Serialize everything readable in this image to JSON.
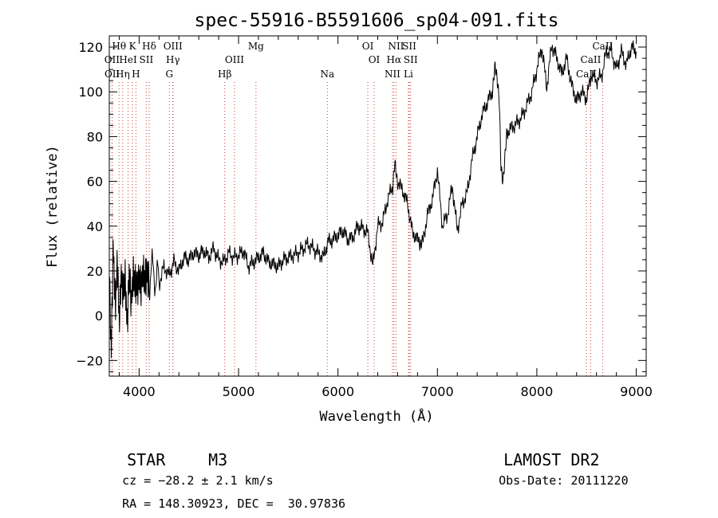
{
  "chart_data": {
    "type": "line",
    "title": "spec-55916-B5591606_sp04-091.fits",
    "xlabel": "Wavelength (Å)",
    "ylabel": "Flux (relative)",
    "xlim": [
      3700,
      9100
    ],
    "ylim": [
      -27,
      125
    ],
    "x_ticks": [
      4000,
      5000,
      6000,
      7000,
      8000,
      9000
    ],
    "y_ticks": [
      -20,
      0,
      20,
      40,
      60,
      80,
      100,
      120
    ],
    "grid": false,
    "series": [
      {
        "x": [
          3700,
          3720,
          3740,
          3760,
          3780,
          3800,
          3820,
          3840,
          3860,
          3880,
          3900,
          3920,
          3940,
          3960,
          3980,
          4000,
          4020,
          4040,
          4060,
          4080,
          4100,
          4150,
          4200,
          4250,
          4300,
          4350,
          4400,
          4450,
          4500,
          4550,
          4600,
          4650,
          4700,
          4750,
          4800,
          4850,
          4900,
          4950,
          5000,
          5050,
          5100,
          5150,
          5200,
          5250,
          5300,
          5350,
          5400,
          5450,
          5500,
          5550,
          5600,
          5650,
          5700,
          5750,
          5800,
          5850,
          5900,
          5950,
          6000,
          6050,
          6100,
          6150,
          6200,
          6250,
          6300,
          6350,
          6400,
          6450,
          6500,
          6550,
          6570,
          6600,
          6650,
          6700,
          6750,
          6800,
          6830,
          6850,
          6900,
          6950,
          7000,
          7050,
          7100,
          7150,
          7200,
          7250,
          7300,
          7350,
          7400,
          7450,
          7500,
          7550,
          7580,
          7600,
          7620,
          7640,
          7660,
          7680,
          7700,
          7750,
          7800,
          7850,
          7900,
          7950,
          8000,
          8050,
          8100,
          8150,
          8200,
          8250,
          8300,
          8350,
          8400,
          8450,
          8500,
          8550,
          8600,
          8650,
          8700,
          8750,
          8800,
          8850,
          8900,
          8950,
          9000
        ],
        "y": [
          20,
          -15,
          30,
          5,
          25,
          -5,
          20,
          10,
          15,
          -2,
          18,
          5,
          20,
          12,
          14,
          18,
          10,
          22,
          15,
          18,
          17,
          20,
          14,
          22,
          18,
          24,
          20,
          26,
          25,
          28,
          27,
          29,
          26,
          30,
          25,
          24,
          28,
          26,
          27,
          29,
          22,
          24,
          26,
          28,
          24,
          23,
          22,
          25,
          26,
          27,
          28,
          30,
          32,
          30,
          28,
          26,
          33,
          34,
          36,
          38,
          34,
          35,
          40,
          39,
          37,
          22,
          40,
          42,
          52,
          58,
          67,
          60,
          56,
          50,
          37,
          34,
          33,
          32,
          45,
          52,
          65,
          40,
          45,
          58,
          38,
          50,
          55,
          70,
          80,
          90,
          95,
          100,
          110,
          108,
          98,
          65,
          62,
          70,
          82,
          84,
          86,
          89,
          94,
          100,
          110,
          120,
          102,
          121,
          115,
          108,
          115,
          103,
          96,
          100,
          97,
          108,
          105,
          107,
          118,
          118,
          110,
          118,
          112,
          120,
          118
        ]
      }
    ],
    "line_markers": [
      {
        "label": "Hθ",
        "x": 3798,
        "row": 0
      },
      {
        "label": "K",
        "x": 3934,
        "row": 0
      },
      {
        "label": "Hδ",
        "x": 4101,
        "row": 0
      },
      {
        "label": "OIII",
        "x": 4340,
        "row": 0
      },
      {
        "label": "Mg",
        "x": 5175,
        "row": 0
      },
      {
        "label": "OI",
        "x": 6300,
        "row": 0
      },
      {
        "label": "NII",
        "x": 6584,
        "row": 0
      },
      {
        "label": "SII",
        "x": 6717,
        "row": 0
      },
      {
        "label": "CaII",
        "x": 8662,
        "row": 0
      },
      {
        "label": "OII",
        "x": 3727,
        "row": 1
      },
      {
        "label": "HeI",
        "x": 3889,
        "row": 1
      },
      {
        "label": "SII",
        "x": 4072,
        "row": 1
      },
      {
        "label": "Hγ",
        "x": 4340,
        "row": 1
      },
      {
        "label": "OIII",
        "x": 4959,
        "row": 1
      },
      {
        "label": "OI",
        "x": 6364,
        "row": 1
      },
      {
        "label": "Hα",
        "x": 6563,
        "row": 1
      },
      {
        "label": "SII",
        "x": 6731,
        "row": 1
      },
      {
        "label": "CaII",
        "x": 8542,
        "row": 1
      },
      {
        "label": "OII",
        "x": 3729,
        "row": 2
      },
      {
        "label": "Hη",
        "x": 3835,
        "row": 2
      },
      {
        "label": "H",
        "x": 3968,
        "row": 2
      },
      {
        "label": "G",
        "x": 4304,
        "row": 2
      },
      {
        "label": "Hβ",
        "x": 4861,
        "row": 2
      },
      {
        "label": "Na",
        "x": 5893,
        "row": 2
      },
      {
        "label": "NII",
        "x": 6548,
        "row": 2
      },
      {
        "label": "Li",
        "x": 6708,
        "row": 2
      },
      {
        "label": "CaII",
        "x": 8498,
        "row": 2
      }
    ]
  },
  "info": {
    "object_class": "STAR",
    "subclass": "M3",
    "survey": "LAMOST DR2",
    "cz": "cz = −28.2 ± 2.1 km/s",
    "obs_date": "Obs-Date: 20111220",
    "coords": "RA = 148.30923, DEC =  30.97836"
  }
}
